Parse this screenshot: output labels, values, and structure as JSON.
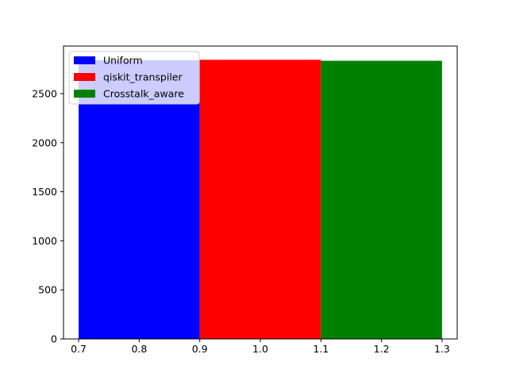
{
  "chart_data": {
    "type": "bar",
    "title": "",
    "xlabel": "",
    "ylabel": "",
    "xlim": [
      0.675,
      1.325
    ],
    "ylim": [
      0,
      2985
    ],
    "grid": false,
    "legend_position": "top-left",
    "x_ticks": [
      0.7,
      0.8,
      0.9,
      1.0,
      1.1,
      1.2,
      1.3
    ],
    "x_tick_labels": [
      "0.7",
      "0.8",
      "0.9",
      "1.0",
      "1.1",
      "1.2",
      "1.3"
    ],
    "y_ticks": [
      0,
      500,
      1000,
      1500,
      2000,
      2500
    ],
    "y_tick_labels": [
      "0",
      "500",
      "1000",
      "1500",
      "2000",
      "2500"
    ],
    "series": [
      {
        "name": "Uniform",
        "x_start": 0.7,
        "x_end": 0.9,
        "value": 2840,
        "color": "#0000ff"
      },
      {
        "name": "qiskit_transpiler",
        "x_start": 0.9,
        "x_end": 1.1,
        "value": 2845,
        "color": "#ff0000"
      },
      {
        "name": "Crosstalk_aware",
        "x_start": 1.1,
        "x_end": 1.3,
        "value": 2835,
        "color": "#008000"
      }
    ]
  }
}
